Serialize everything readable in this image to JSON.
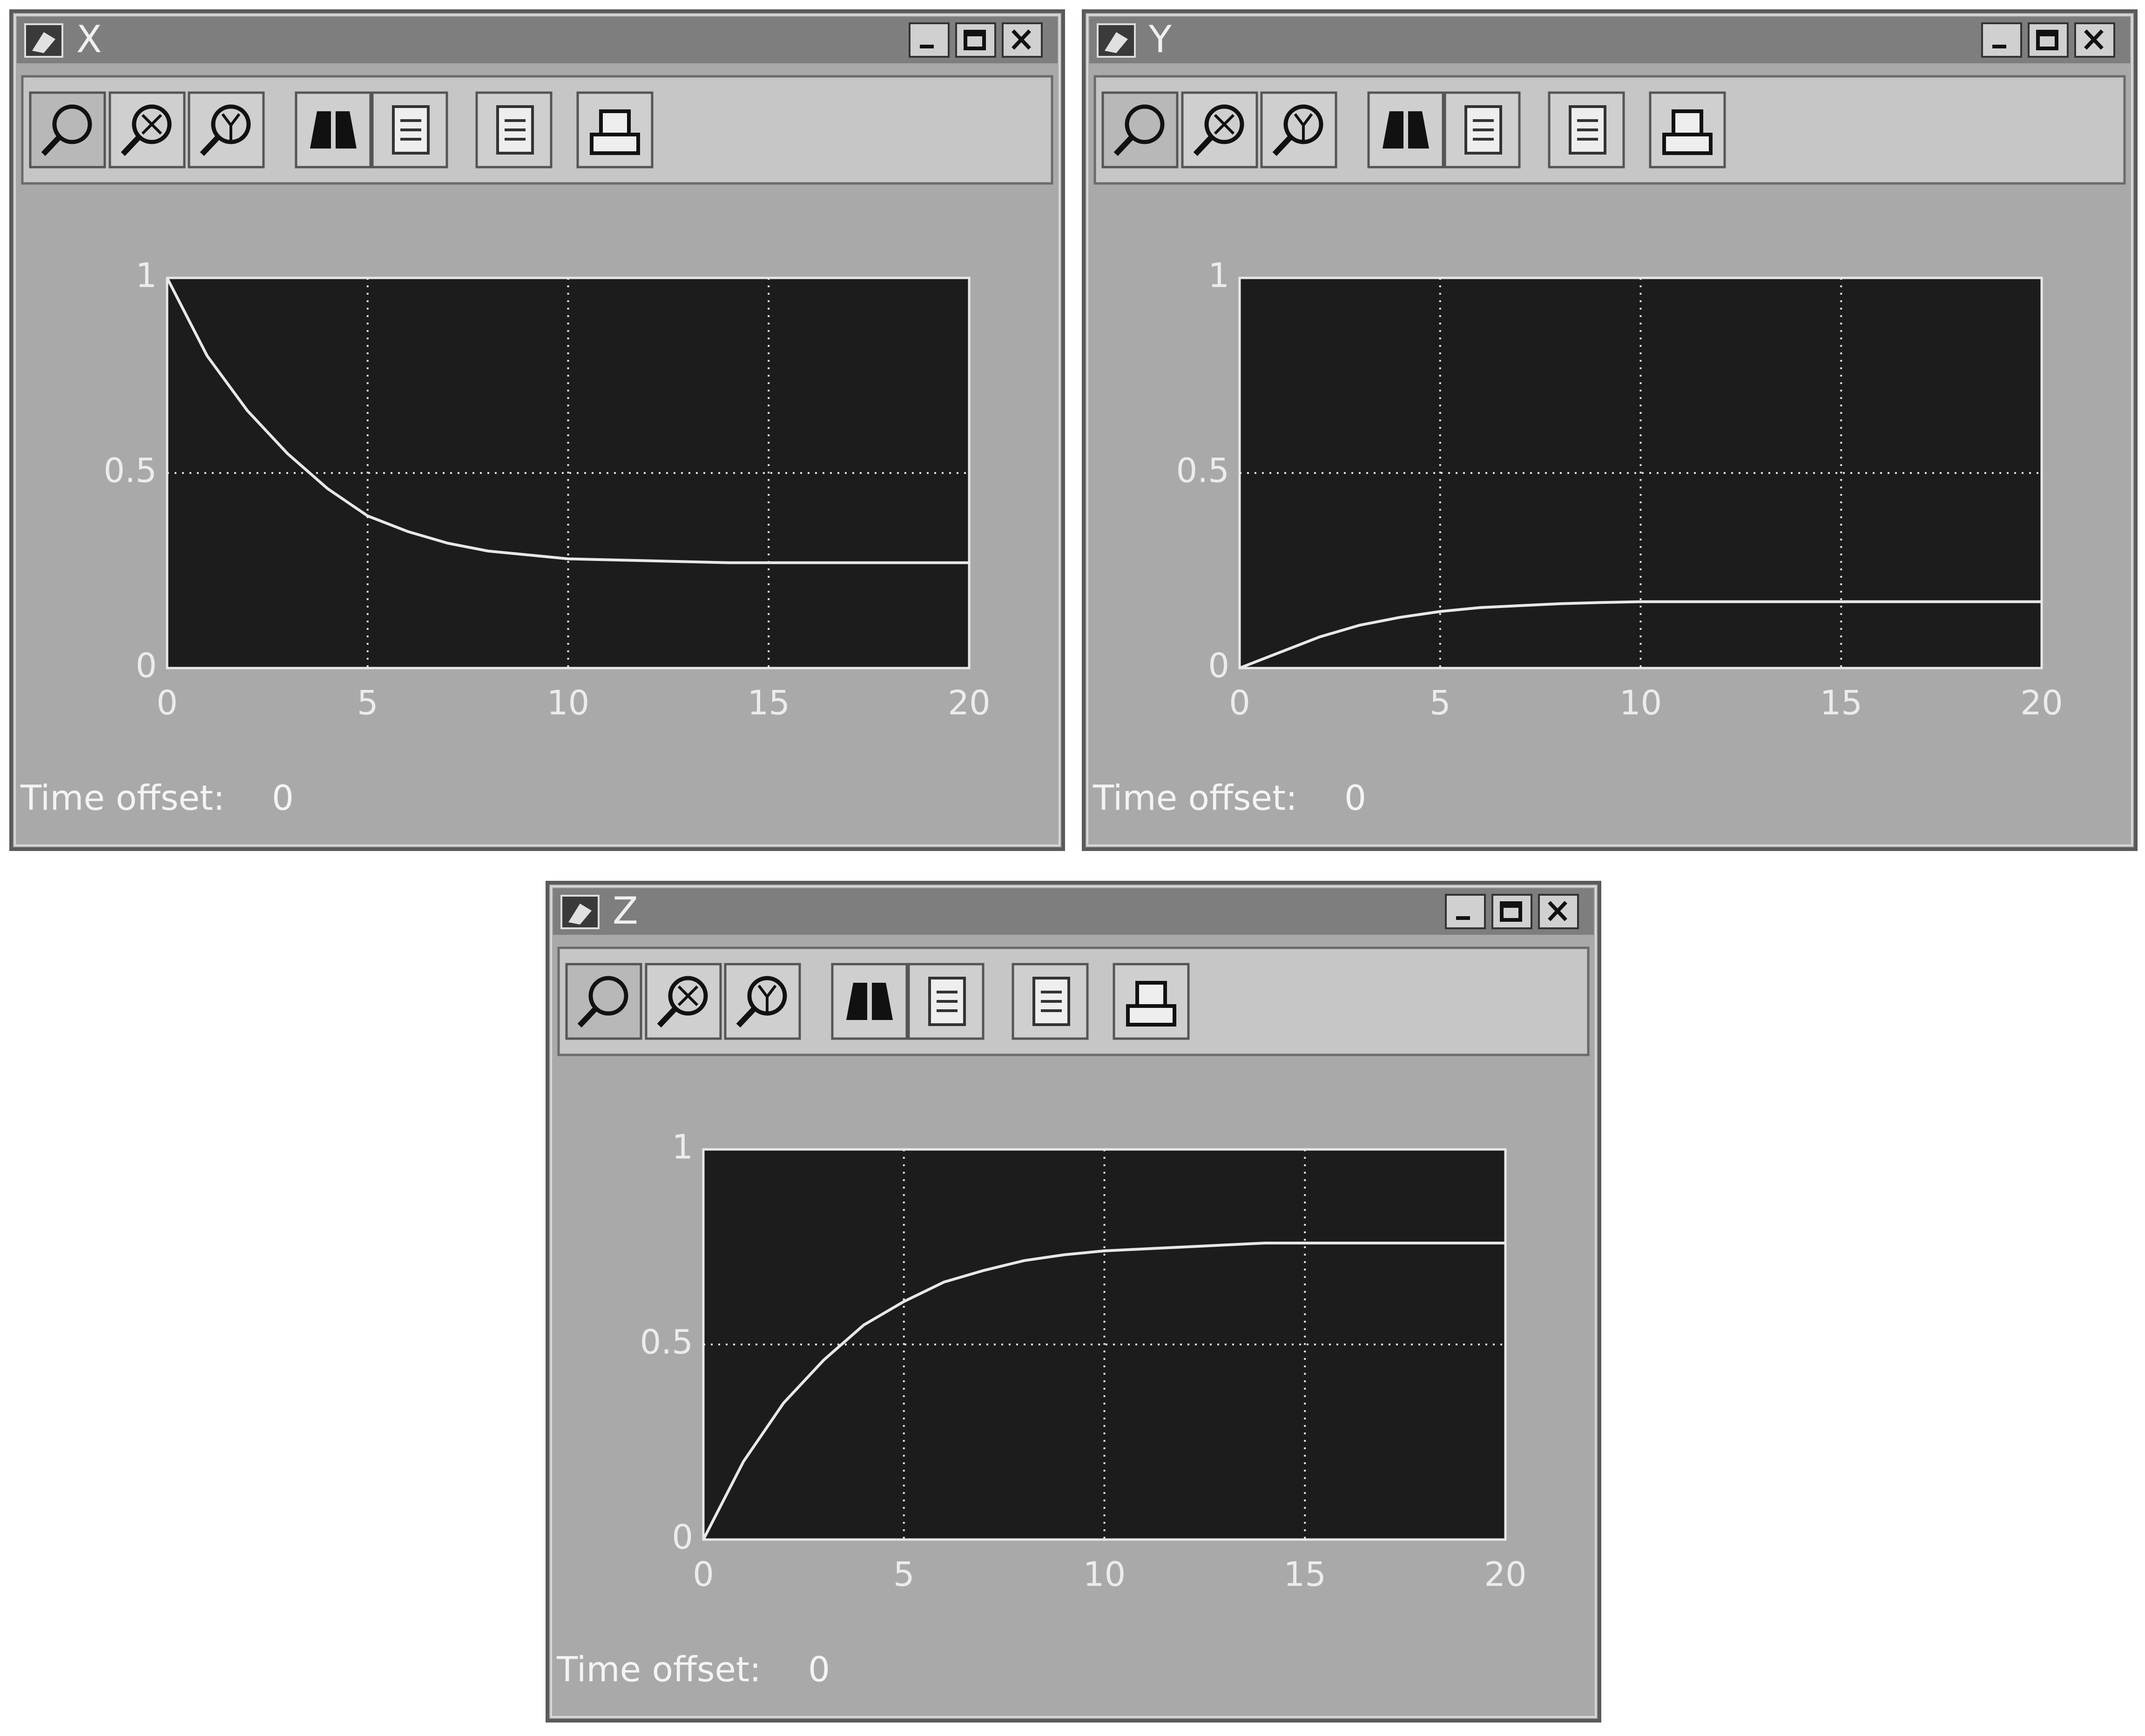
{
  "chart_data": [
    {
      "type": "line",
      "title": "X",
      "x": [
        0,
        1,
        2,
        3,
        4,
        5,
        6,
        7,
        8,
        9,
        10,
        12,
        14,
        16,
        18,
        20
      ],
      "series": [
        {
          "color": "#e8e8e8",
          "values": [
            1,
            0.8,
            0.66,
            0.55,
            0.46,
            0.39,
            0.35,
            0.32,
            0.3,
            0.29,
            0.28,
            0.275,
            0.27,
            0.27,
            0.27,
            0.27
          ]
        }
      ],
      "xlim": [
        0,
        20
      ],
      "ylim": [
        0,
        1
      ],
      "xticks": [
        0,
        5,
        10,
        15,
        20
      ],
      "yticks": [
        0,
        0.5,
        1
      ],
      "grid": true,
      "time_offset_label": "Time offset:",
      "time_offset": 0
    },
    {
      "type": "line",
      "title": "Y",
      "x": [
        0,
        1,
        2,
        3,
        4,
        5,
        6,
        7,
        8,
        9,
        10,
        12,
        14,
        16,
        18,
        20
      ],
      "series": [
        {
          "color": "#e8e8e8",
          "values": [
            0,
            0.04,
            0.08,
            0.11,
            0.13,
            0.145,
            0.155,
            0.16,
            0.165,
            0.168,
            0.17,
            0.17,
            0.17,
            0.17,
            0.17,
            0.17
          ]
        }
      ],
      "xlim": [
        0,
        20
      ],
      "ylim": [
        0,
        1
      ],
      "xticks": [
        0,
        5,
        10,
        15,
        20
      ],
      "yticks": [
        0,
        0.5,
        1
      ],
      "grid": true,
      "time_offset_label": "Time offset:",
      "time_offset": 0
    },
    {
      "type": "line",
      "title": "Z",
      "x": [
        0,
        1,
        2,
        3,
        4,
        5,
        6,
        7,
        8,
        9,
        10,
        12,
        14,
        16,
        18,
        20
      ],
      "series": [
        {
          "color": "#e8e8e8",
          "values": [
            0,
            0.2,
            0.35,
            0.46,
            0.55,
            0.61,
            0.66,
            0.69,
            0.715,
            0.73,
            0.74,
            0.75,
            0.76,
            0.76,
            0.76,
            0.76
          ]
        }
      ],
      "xlim": [
        0,
        20
      ],
      "ylim": [
        0,
        1
      ],
      "xticks": [
        0,
        5,
        10,
        15,
        20
      ],
      "yticks": [
        0,
        0.5,
        1
      ],
      "grid": true,
      "time_offset_label": "Time offset:",
      "time_offset": 0
    }
  ]
}
